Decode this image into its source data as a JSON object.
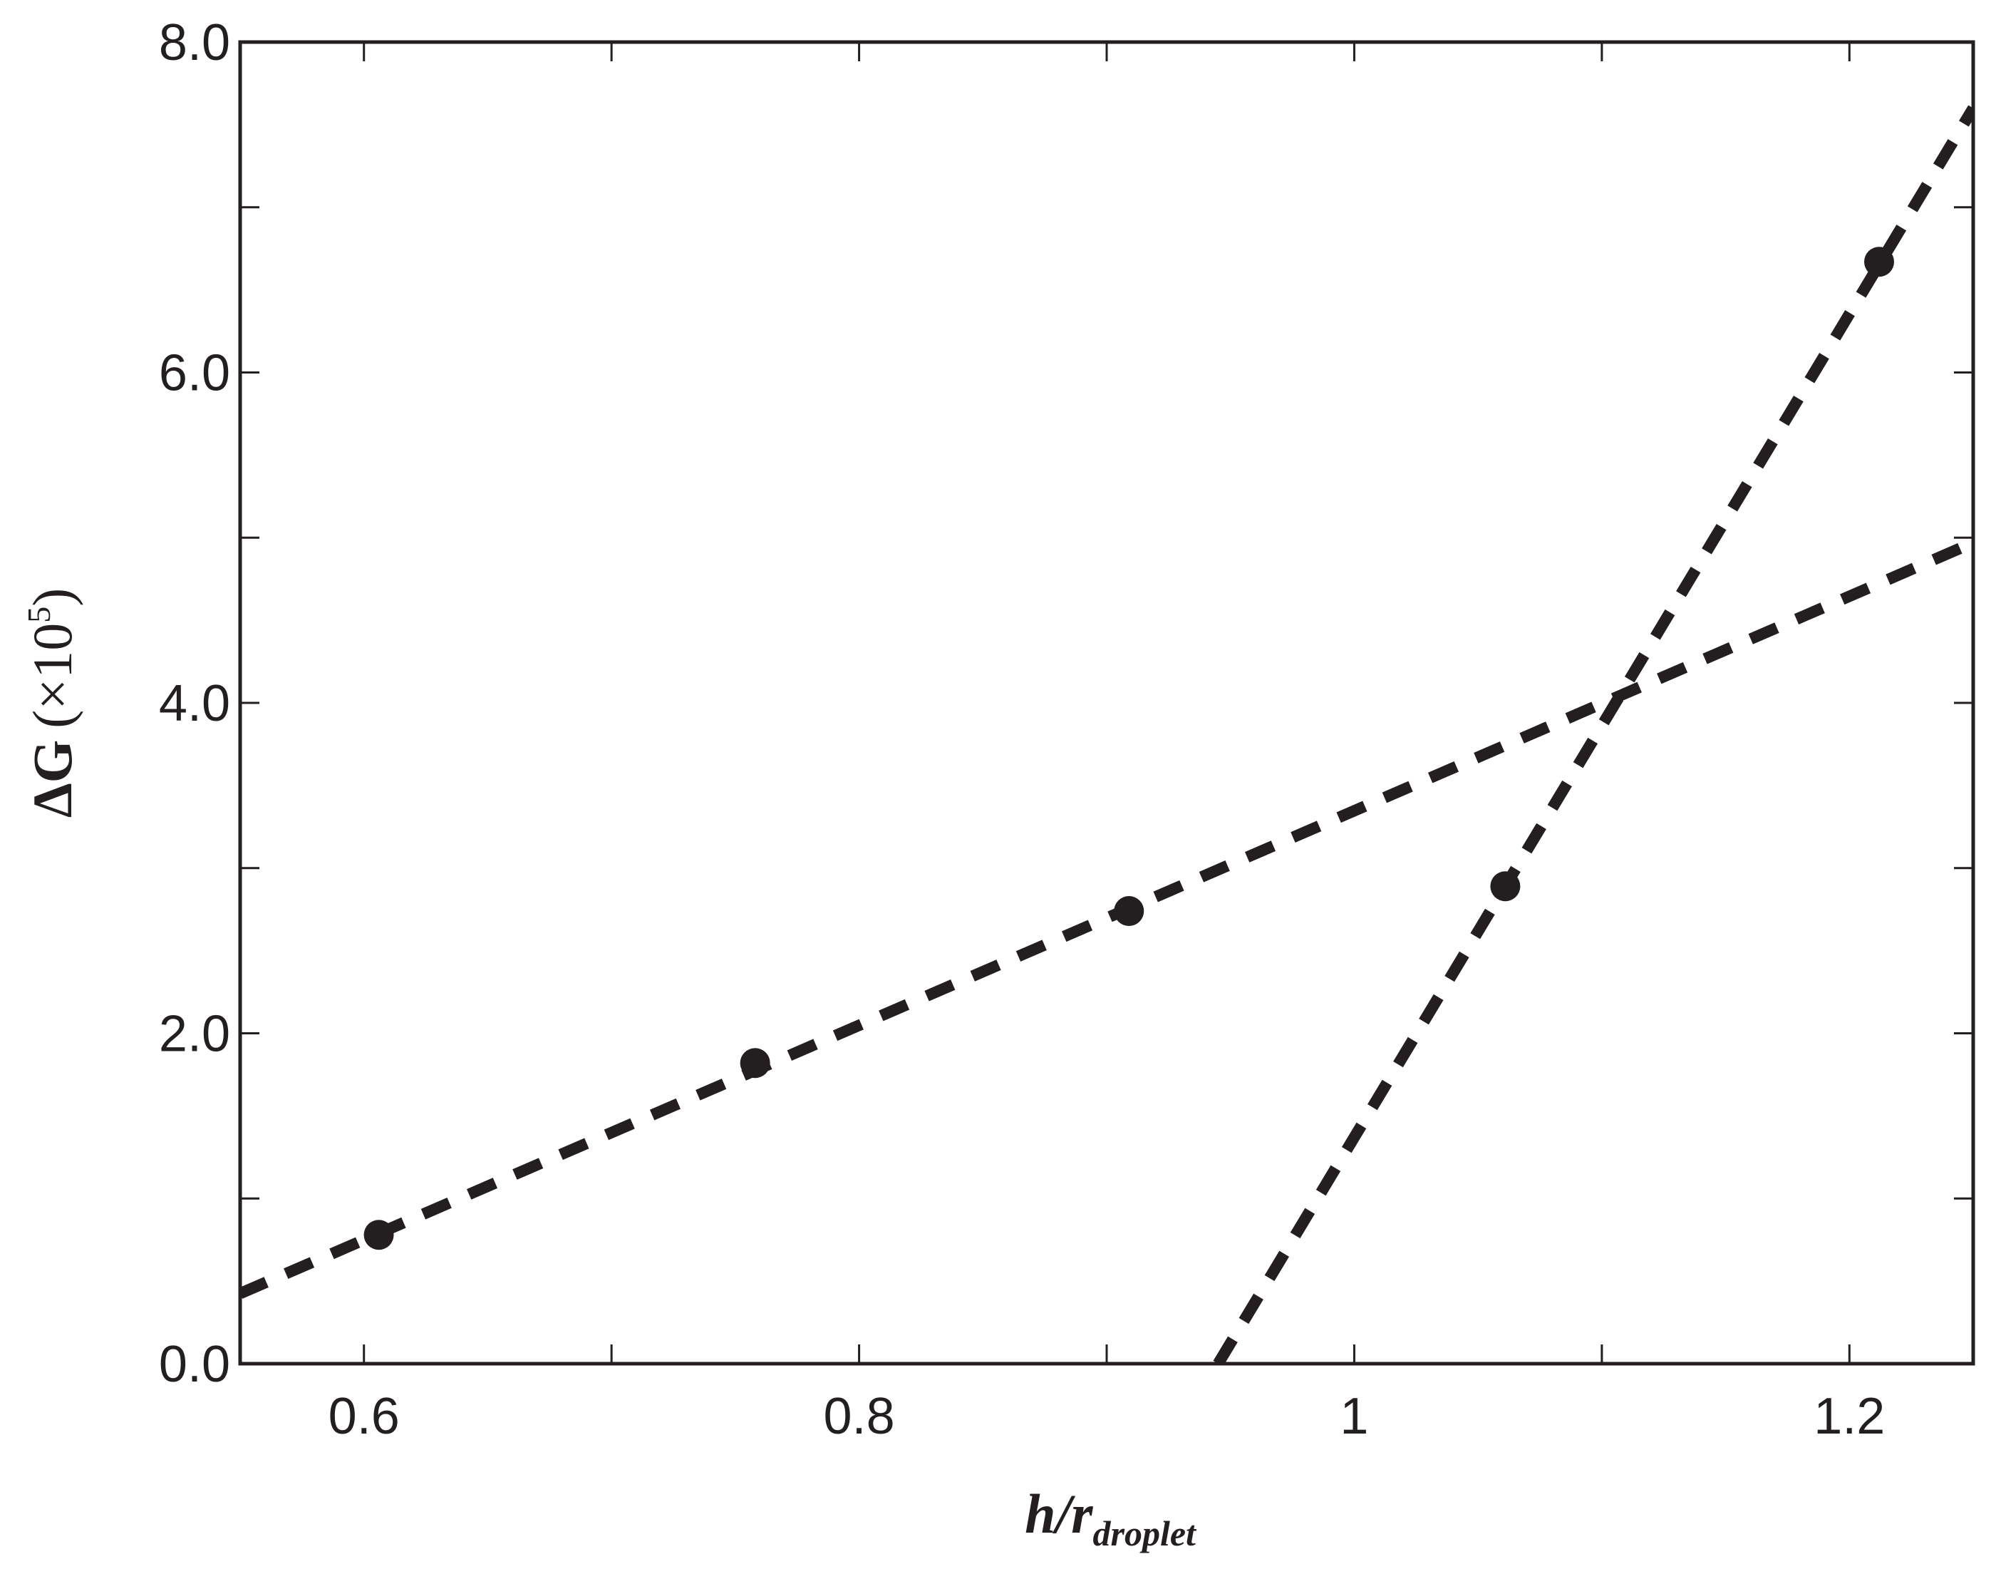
{
  "chart_data": {
    "type": "scatter",
    "x_label": "h/r",
    "x_label_sub": "droplet",
    "y_label": "ΔG",
    "y_label_unit": "(×10",
    "y_label_exponent": "5",
    "y_label_close": ")",
    "xlim": [
      0.55,
      1.25
    ],
    "xticks": [
      0.6,
      0.8,
      1,
      1.2
    ],
    "xminor": [
      0.7,
      0.9,
      1.1
    ],
    "ylim": [
      0,
      8
    ],
    "yticks": [
      {
        "value": 0,
        "label": "0.0"
      },
      {
        "value": 2,
        "label": "2.0"
      },
      {
        "value": 4,
        "label": "4.0"
      },
      {
        "value": 6,
        "label": "6.0"
      },
      {
        "value": 8,
        "label": "8.0"
      }
    ],
    "yminor": [
      1,
      3,
      5,
      7
    ],
    "color": "#231f20",
    "points": {
      "x": [
        0.606,
        0.758,
        0.909,
        1.061,
        1.212
      ],
      "values": [
        0.78,
        1.82,
        2.74,
        2.89,
        6.67
      ]
    },
    "fits": [
      {
        "x": [
          0.55,
          1.25
        ],
        "values": [
          0.425,
          4.97
        ]
      },
      {
        "x": [
          0.945,
          1.25
        ],
        "values": [
          0,
          7.6
        ]
      }
    ]
  }
}
